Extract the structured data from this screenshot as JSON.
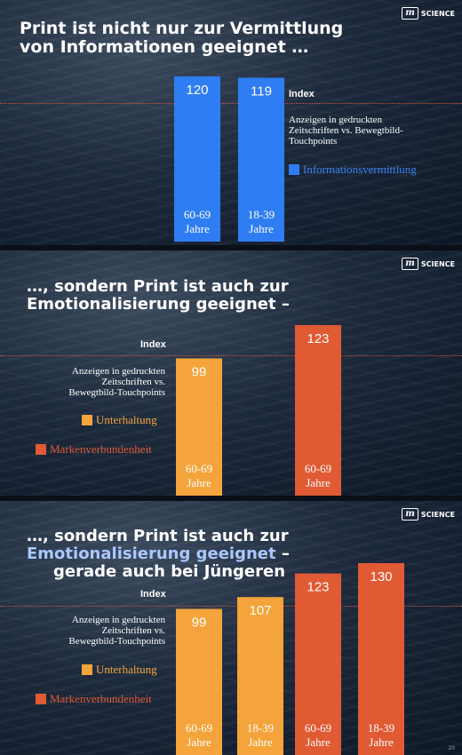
{
  "brand": {
    "box": "m",
    "name": "SCIENCE"
  },
  "index_label": "Index",
  "subtitle": [
    "Anzeigen in gedruckten",
    "Zeitschriften vs.",
    "Bewegtbild-Touchpoints"
  ],
  "colors": {
    "info": "#2f7df2",
    "unterhaltung": "#f4a43a",
    "marken": "#e05a34"
  },
  "panels": [
    {
      "title": [
        "Print ist nicht nur zur Vermittlung",
        "von Informationen geeignet …"
      ],
      "legend": [
        {
          "label": "Informationsvermittlung",
          "color": "#2f7df2"
        }
      ]
    },
    {
      "title": [
        "…, sondern Print ist auch zur",
        "Emotionalisierung geeignet –"
      ],
      "legend": [
        {
          "label": "Unterhaltung",
          "color": "#f4a43a"
        },
        {
          "label": "Markenverbundenheit",
          "color": "#e05a34"
        }
      ]
    },
    {
      "title": [
        "…, sondern Print ist auch zur",
        "Emotionalisierung geeignet",
        "–",
        "gerade auch bei Jüngeren"
      ],
      "legend": [
        {
          "label": "Unterhaltung",
          "color": "#f4a43a"
        },
        {
          "label": "Markenverbundenheit",
          "color": "#e05a34"
        }
      ]
    }
  ],
  "page_number": "20",
  "chart_data": [
    {
      "type": "bar",
      "ylabel": "Index",
      "baseline": 100,
      "categories": [
        "60-69 Jahre",
        "18-39 Jahre"
      ],
      "series": [
        {
          "name": "Informationsvermittlung",
          "values": [
            120,
            119
          ]
        }
      ]
    },
    {
      "type": "bar",
      "ylabel": "Index",
      "baseline": 100,
      "categories": [
        "60-69 Jahre",
        "60-69 Jahre"
      ],
      "series": [
        {
          "name": "Unterhaltung",
          "values": [
            99,
            null
          ]
        },
        {
          "name": "Markenverbundenheit",
          "values": [
            null,
            123
          ]
        }
      ]
    },
    {
      "type": "bar",
      "ylabel": "Index",
      "baseline": 100,
      "categories": [
        "60-69 Jahre",
        "18-39 Jahre",
        "60-69 Jahre",
        "18-39 Jahre"
      ],
      "series": [
        {
          "name": "Unterhaltung",
          "values": [
            99,
            107,
            null,
            null
          ]
        },
        {
          "name": "Markenverbundenheit",
          "values": [
            null,
            null,
            123,
            130
          ]
        }
      ]
    }
  ]
}
